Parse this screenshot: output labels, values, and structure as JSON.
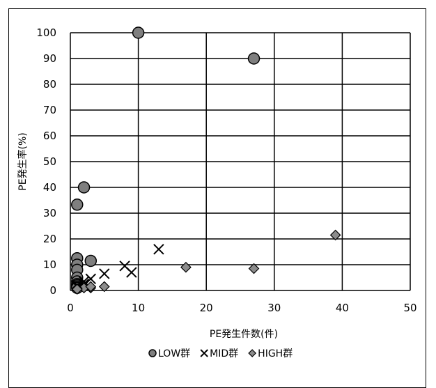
{
  "chart_data": {
    "type": "scatter",
    "title": "",
    "xlabel": "PE発生件数(件)",
    "ylabel": "PE発生率(%)",
    "xlim": [
      0,
      50
    ],
    "ylim": [
      0,
      100
    ],
    "xticks": [
      0,
      10,
      20,
      30,
      40,
      50
    ],
    "yticks": [
      0,
      10,
      20,
      30,
      40,
      50,
      60,
      70,
      80,
      90,
      100
    ],
    "grid": true,
    "legend_position": "bottom",
    "series": [
      {
        "name": "LOW群",
        "marker": "circle",
        "color": "#7f7f7f",
        "x": [
          10,
          27,
          2,
          1,
          1,
          1,
          1,
          1,
          3,
          1,
          1,
          1,
          1,
          1
        ],
        "y": [
          100,
          90,
          40,
          33.3,
          12.5,
          10,
          8,
          5,
          11.5,
          3.5,
          2.5,
          2,
          1.5,
          1
        ]
      },
      {
        "name": "MID群",
        "marker": "x",
        "color": "#000000",
        "x": [
          13,
          8,
          9,
          5,
          3,
          2,
          2,
          1,
          1
        ],
        "y": [
          16,
          9.5,
          7,
          6.5,
          4.5,
          3.5,
          2.5,
          2,
          1.5
        ]
      },
      {
        "name": "HIGH群",
        "marker": "diamond",
        "color": "#8c8c8c",
        "x": [
          39,
          17,
          27,
          5,
          3,
          2,
          1,
          1,
          3
        ],
        "y": [
          21.5,
          9,
          8.5,
          1.5,
          1,
          1,
          0.8,
          0.5,
          1.5
        ]
      }
    ]
  }
}
